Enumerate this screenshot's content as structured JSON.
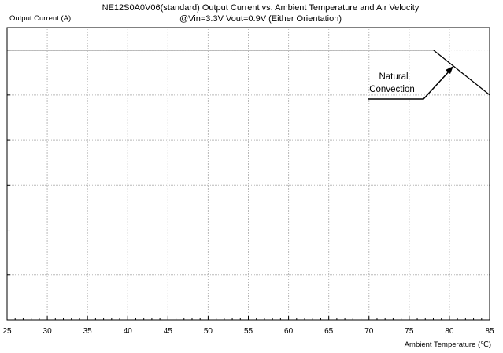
{
  "chart_data": {
    "type": "line",
    "title_line1": "NE12S0A0V06(standard)  Output Current vs. Ambient Temperature and Air Velocity",
    "title_line2": "@Vin=3.3V Vout=0.9V (Either Orientation)",
    "ylabel": "Output Current (A)",
    "xlabel": "Ambient Temperature (℃)",
    "xlim": [
      25,
      85
    ],
    "x_ticks": [
      25,
      30,
      35,
      40,
      45,
      50,
      55,
      60,
      65,
      70,
      75,
      80,
      85
    ],
    "y_gridlines": 6,
    "grid": true,
    "series": [
      {
        "name": "Natural Convection",
        "points": [
          [
            25,
            6.0
          ],
          [
            78,
            6.0
          ],
          [
            85,
            5.0
          ]
        ]
      }
    ],
    "annotation": {
      "lines": [
        "Natural",
        "Convection"
      ]
    }
  }
}
